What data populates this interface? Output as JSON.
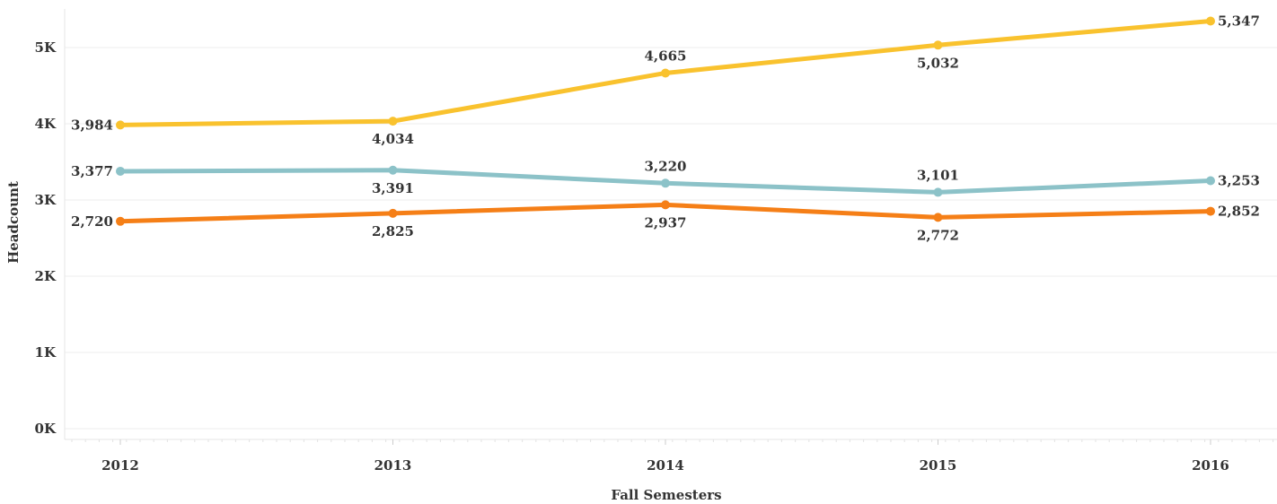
{
  "chart_data": {
    "type": "line",
    "title": "",
    "xlabel": "Fall Semesters",
    "ylabel": "Headcount",
    "categories": [
      "2012",
      "2013",
      "2014",
      "2015",
      "2016"
    ],
    "ylim": [
      0,
      5700
    ],
    "y_ticks": [
      {
        "value": 0,
        "label": "0K"
      },
      {
        "value": 1000,
        "label": "1K"
      },
      {
        "value": 2000,
        "label": "2K"
      },
      {
        "value": 3000,
        "label": "3K"
      },
      {
        "value": 4000,
        "label": "4K"
      },
      {
        "value": 5000,
        "label": "5K"
      }
    ],
    "grid": true,
    "legend": "none",
    "series": [
      {
        "color": "#F9C22E",
        "values": [
          3984,
          4034,
          4665,
          5032,
          5347
        ],
        "labels": [
          "3,984",
          "4,034",
          "4,665",
          "5,032",
          "5,347"
        ],
        "label_positions": [
          "left",
          "below",
          "above",
          "below",
          "right"
        ]
      },
      {
        "color": "#8CC2C8",
        "values": [
          3377,
          3391,
          3220,
          3101,
          3253
        ],
        "labels": [
          "3,377",
          "3,391",
          "3,220",
          "3,101",
          "3,253"
        ],
        "label_positions": [
          "left",
          "below",
          "above",
          "above",
          "right"
        ]
      },
      {
        "color": "#F57F17",
        "values": [
          2720,
          2825,
          2937,
          2772,
          2852
        ],
        "labels": [
          "2,720",
          "2,825",
          "2,937",
          "2,772",
          "2,852"
        ],
        "label_positions": [
          "left",
          "below",
          "below",
          "below",
          "right"
        ]
      }
    ]
  }
}
